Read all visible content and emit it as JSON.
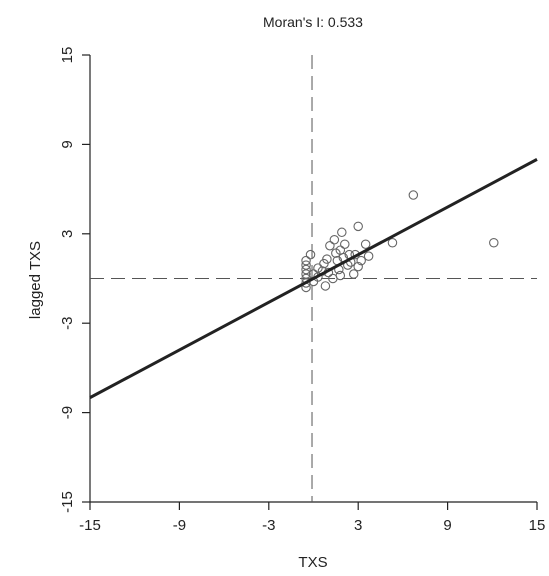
{
  "chart_data": {
    "type": "scatter",
    "title": "Moran's I: 0.533",
    "xlabel": "TXS",
    "ylabel": "lagged TXS",
    "xlim": [
      -15,
      15
    ],
    "ylim": [
      -15,
      15
    ],
    "xticks": [
      -15,
      -9,
      -3,
      3,
      9,
      15
    ],
    "yticks": [
      -15,
      -9,
      -3,
      3,
      9,
      15
    ],
    "x_tick_labels": [
      "-15",
      "-9",
      "-3",
      "3",
      "9",
      "15"
    ],
    "y_tick_labels": [
      "-15",
      "-9",
      "-3",
      "3",
      "9",
      "15"
    ],
    "grid": false,
    "legend": "none",
    "reference_lines": {
      "vertical_x": -0.1,
      "horizontal_y": 0.0
    },
    "regression_line": {
      "slope": 0.533,
      "intercept": 0.0,
      "color": "#222222"
    },
    "marker_color": "#666666",
    "points": [
      {
        "x": -0.5,
        "y": -0.6
      },
      {
        "x": -0.5,
        "y": -0.3
      },
      {
        "x": -0.5,
        "y": 0.0
      },
      {
        "x": -0.5,
        "y": 0.3
      },
      {
        "x": -0.5,
        "y": 0.6
      },
      {
        "x": -0.5,
        "y": 0.9
      },
      {
        "x": -0.5,
        "y": 1.2
      },
      {
        "x": -0.2,
        "y": 1.6
      },
      {
        "x": 0.0,
        "y": -0.2
      },
      {
        "x": 0.0,
        "y": 0.3
      },
      {
        "x": 0.3,
        "y": 0.1
      },
      {
        "x": 0.3,
        "y": 0.7
      },
      {
        "x": 0.6,
        "y": 0.5
      },
      {
        "x": 0.7,
        "y": 1.0
      },
      {
        "x": 0.8,
        "y": -0.5
      },
      {
        "x": 0.9,
        "y": 1.3
      },
      {
        "x": 1.0,
        "y": 0.4
      },
      {
        "x": 1.1,
        "y": 2.2
      },
      {
        "x": 1.3,
        "y": 0.0
      },
      {
        "x": 1.4,
        "y": 2.6
      },
      {
        "x": 1.5,
        "y": 1.7
      },
      {
        "x": 1.6,
        "y": 1.2
      },
      {
        "x": 1.7,
        "y": 0.6
      },
      {
        "x": 1.8,
        "y": 1.9
      },
      {
        "x": 1.8,
        "y": 0.2
      },
      {
        "x": 1.9,
        "y": 3.1
      },
      {
        "x": 2.0,
        "y": 1.4
      },
      {
        "x": 2.1,
        "y": 2.3
      },
      {
        "x": 2.3,
        "y": 0.9
      },
      {
        "x": 2.4,
        "y": 1.6
      },
      {
        "x": 2.5,
        "y": 1.1
      },
      {
        "x": 2.7,
        "y": 0.3
      },
      {
        "x": 2.8,
        "y": 1.6
      },
      {
        "x": 3.0,
        "y": 3.5
      },
      {
        "x": 3.0,
        "y": 0.8
      },
      {
        "x": 3.2,
        "y": 1.2
      },
      {
        "x": 3.5,
        "y": 2.3
      },
      {
        "x": 3.7,
        "y": 1.5
      },
      {
        "x": 5.3,
        "y": 2.4
      },
      {
        "x": 6.7,
        "y": 5.6
      },
      {
        "x": 12.1,
        "y": 2.4
      }
    ]
  }
}
